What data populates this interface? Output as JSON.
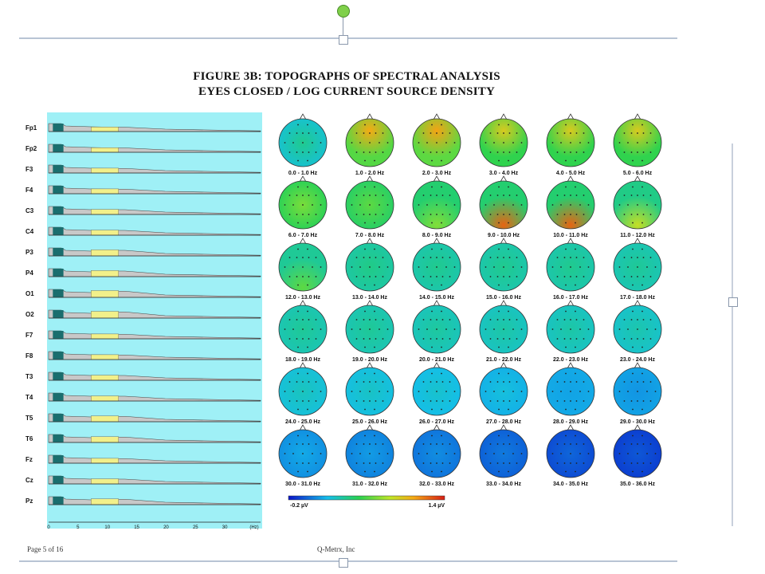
{
  "figure": {
    "title_line1": "FIGURE 3B: TOPOGRAPHS OF SPECTRAL ANALYSIS",
    "title_line2": "EYES CLOSED / LOG CURRENT SOURCE DENSITY"
  },
  "footer": {
    "page": "Page 5 of 16",
    "company": "Q-Metrx, Inc"
  },
  "colors": {
    "panel_bg": "#9ff0f6",
    "spectrum_fill": "#c8c8c8",
    "alpha_fill": "#f2f08a",
    "delta_fill": "#1a6e6e"
  },
  "chart_data": {
    "type": "area",
    "channels": [
      "Fp1",
      "Fp2",
      "F3",
      "F4",
      "C3",
      "C4",
      "P3",
      "P4",
      "O1",
      "O2",
      "F7",
      "F8",
      "T3",
      "T4",
      "T5",
      "T6",
      "Fz",
      "Cz",
      "Pz"
    ],
    "x_ticks": [
      "0",
      "5",
      "10",
      "15",
      "20",
      "25",
      "30",
      "(Hz)"
    ],
    "alpha_level": [
      0.3,
      0.3,
      0.35,
      0.35,
      0.4,
      0.4,
      0.6,
      0.6,
      0.75,
      0.75,
      0.35,
      0.35,
      0.4,
      0.4,
      0.55,
      0.55,
      0.35,
      0.4,
      0.55
    ]
  },
  "topographs": {
    "bands": [
      "0.0 - 1.0 Hz",
      "1.0 - 2.0 Hz",
      "2.0 - 3.0 Hz",
      "3.0 - 4.0 Hz",
      "4.0 - 5.0 Hz",
      "5.0 - 6.0 Hz",
      "6.0 - 7.0 Hz",
      "7.0 - 8.0 Hz",
      "8.0 - 9.0 Hz",
      "9.0 - 10.0 Hz",
      "10.0 - 11.0 Hz",
      "11.0 - 12.0 Hz",
      "12.0 - 13.0 Hz",
      "13.0 - 14.0 Hz",
      "14.0 - 15.0 Hz",
      "15.0 - 16.0 Hz",
      "16.0 - 17.0 Hz",
      "17.0 - 18.0 Hz",
      "18.0 - 19.0 Hz",
      "19.0 - 20.0 Hz",
      "20.0 - 21.0 Hz",
      "21.0 - 22.0 Hz",
      "22.0 - 23.0 Hz",
      "23.0 - 24.0 Hz",
      "24.0 - 25.0 Hz",
      "25.0 - 26.0 Hz",
      "26.0 - 27.0 Hz",
      "27.0 - 28.0 Hz",
      "28.0 - 29.0 Hz",
      "29.0 - 30.0 Hz",
      "30.0 - 31.0 Hz",
      "31.0 - 32.0 Hz",
      "32.0 - 33.0 Hz",
      "33.0 - 34.0 Hz",
      "34.0 - 35.0 Hz",
      "35.0 - 36.0 Hz"
    ],
    "base_level": [
      0.32,
      0.55,
      0.56,
      0.5,
      0.5,
      0.5,
      0.48,
      0.46,
      0.45,
      0.45,
      0.45,
      0.42,
      0.4,
      0.38,
      0.37,
      0.37,
      0.37,
      0.36,
      0.36,
      0.36,
      0.35,
      0.34,
      0.34,
      0.33,
      0.31,
      0.3,
      0.29,
      0.27,
      0.26,
      0.25,
      0.22,
      0.2,
      0.18,
      0.15,
      0.12,
      0.1
    ],
    "hotspot": [
      "center",
      "frontal",
      "frontal",
      "frontal",
      "frontal",
      "frontal",
      "center",
      "center",
      "posterior",
      "posterior",
      "posterior",
      "posterior",
      "posterior",
      "none",
      "none",
      "none",
      "none",
      "none",
      "none",
      "none",
      "none",
      "none",
      "none",
      "none",
      "none",
      "none",
      "none",
      "none",
      "center",
      "center",
      "none",
      "none",
      "none",
      "none",
      "none",
      "none"
    ],
    "hotspot_strength": [
      0.05,
      0.25,
      0.25,
      0.22,
      0.22,
      0.22,
      0.08,
      0.06,
      0.12,
      0.45,
      0.45,
      0.25,
      0.12,
      0,
      0,
      0,
      0,
      0,
      0,
      0,
      0,
      0,
      0,
      0,
      0,
      0,
      0,
      0,
      -0.05,
      -0.06,
      0,
      0,
      0,
      0,
      0,
      0
    ],
    "scale_min_label": "-0.2 µV",
    "scale_max_label": "1.4 µV"
  }
}
